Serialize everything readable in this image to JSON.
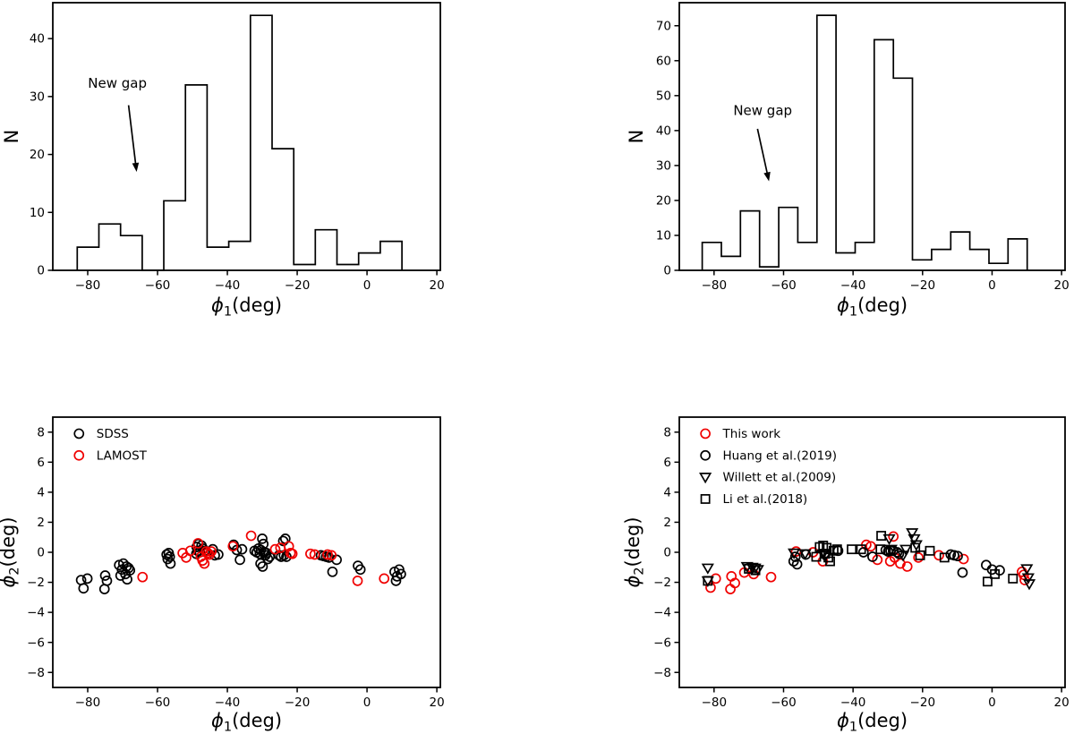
{
  "figure": {
    "background": "#ffffff",
    "text_color": "#000000",
    "accent_red": "#f00000",
    "annotation_label": "New gap"
  },
  "chart_data": [
    {
      "id": "hist1",
      "type": "histogram",
      "panel": "top-left",
      "xlabel": {
        "sym": "ϕ",
        "sub": "1",
        "rest": "(deg)",
        "italic": true
      },
      "ylabel": {
        "sym": "N",
        "sub": "",
        "rest": "",
        "italic": false
      },
      "xlim": [
        -90,
        21
      ],
      "ylim": [
        0,
        46.2
      ],
      "xticks": [
        -80,
        -60,
        -40,
        -20,
        0,
        20
      ],
      "yticks": [
        0,
        10,
        20,
        30,
        40
      ],
      "bin_edges": [
        -83,
        -76.8,
        -70.6,
        -64.4,
        -58.2,
        -52,
        -45.8,
        -39.6,
        -33.4,
        -27.2,
        -21,
        -14.8,
        -8.6,
        -2.4,
        3.8,
        10
      ],
      "counts": [
        4,
        8,
        6,
        0,
        12,
        32,
        4,
        5,
        44,
        21,
        1,
        7,
        1,
        3,
        5
      ],
      "annotation": {
        "text": "New gap",
        "text_xy": [
          -71.5,
          31.5
        ],
        "arrow_from": [
          -68.3,
          28.5
        ],
        "arrow_to": [
          -66,
          17
        ]
      }
    },
    {
      "id": "hist2",
      "type": "histogram",
      "panel": "top-right",
      "xlabel": {
        "sym": "ϕ",
        "sub": "1",
        "rest": "(deg)",
        "italic": true
      },
      "ylabel": {
        "sym": "N",
        "sub": "",
        "rest": "",
        "italic": false
      },
      "xlim": [
        -90,
        21
      ],
      "ylim": [
        0,
        76.6
      ],
      "xticks": [
        -80,
        -60,
        -40,
        -20,
        0,
        20
      ],
      "yticks": [
        0,
        10,
        20,
        30,
        40,
        50,
        60,
        70
      ],
      "bin_edges": [
        -83.4,
        -77.9,
        -72.4,
        -66.9,
        -61.4,
        -55.9,
        -50.4,
        -44.9,
        -39.4,
        -33.9,
        -28.4,
        -22.9,
        -17.4,
        -11.9,
        -6.4,
        -0.9,
        4.6,
        10.1
      ],
      "counts": [
        8,
        4,
        17,
        1,
        18,
        8,
        73,
        5,
        8,
        66,
        55,
        3,
        6,
        11,
        6,
        2,
        9
      ],
      "annotation": {
        "text": "New gap",
        "text_xy": [
          -66,
          44.5
        ],
        "arrow_from": [
          -67.5,
          40.5
        ],
        "arrow_to": [
          -64.2,
          25.5
        ]
      }
    },
    {
      "id": "scatter1",
      "type": "scatter",
      "panel": "bottom-left",
      "xlabel": {
        "sym": "ϕ",
        "sub": "1",
        "rest": "(deg)",
        "italic": true
      },
      "ylabel": {
        "sym": "ϕ",
        "sub": "2",
        "rest": "(deg)",
        "italic": true
      },
      "xlim": [
        -90,
        21
      ],
      "ylim": [
        -9,
        9
      ],
      "xticks": [
        -80,
        -60,
        -40,
        -20,
        0,
        20
      ],
      "yticks": [
        -8,
        -6,
        -4,
        -2,
        0,
        2,
        4,
        6,
        8
      ],
      "legend": {
        "position": "upper-left",
        "marker_x": -82.5,
        "label_x": -77.5,
        "first_row_y": 7.9,
        "row_step": 1.45
      },
      "series": [
        {
          "name": "SDSS",
          "marker": "circle",
          "color": "#000000",
          "points": [
            [
              -81.9,
              -1.85
            ],
            [
              -80.1,
              -1.75
            ],
            [
              -81.2,
              -2.4
            ],
            [
              -75.0,
              -1.55
            ],
            [
              -75.2,
              -2.45
            ],
            [
              -74.5,
              -1.9
            ],
            [
              -71.0,
              -0.85
            ],
            [
              -69.8,
              -0.75
            ],
            [
              -68.9,
              -0.95
            ],
            [
              -68.3,
              -1.05
            ],
            [
              -70.2,
              -1.15
            ],
            [
              -69.2,
              -1.45
            ],
            [
              -70.6,
              -1.55
            ],
            [
              -68.7,
              -1.8
            ],
            [
              -67.9,
              -1.2
            ],
            [
              -57.4,
              -0.15
            ],
            [
              -57.1,
              -0.45
            ],
            [
              -56.8,
              -0.05
            ],
            [
              -56.5,
              -0.3
            ],
            [
              -56.3,
              -0.75
            ],
            [
              -48.8,
              0.35
            ],
            [
              -48.3,
              0.55
            ],
            [
              -48.5,
              0.1
            ],
            [
              -47.9,
              0.0
            ],
            [
              -47.4,
              0.45
            ],
            [
              -47.0,
              0.25
            ],
            [
              -46.4,
              0.1
            ],
            [
              -48.9,
              -0.1
            ],
            [
              -44.2,
              0.2
            ],
            [
              -43.6,
              -0.2
            ],
            [
              -42.6,
              -0.15
            ],
            [
              -38.2,
              0.5
            ],
            [
              -37.3,
              0.15
            ],
            [
              -36.4,
              -0.5
            ],
            [
              -35.8,
              0.2
            ],
            [
              -32.2,
              0.1
            ],
            [
              -31.6,
              0.0
            ],
            [
              -31.1,
              0.25
            ],
            [
              -30.7,
              -0.1
            ],
            [
              -30.4,
              0.15
            ],
            [
              -30.0,
              0.9
            ],
            [
              -29.7,
              0.55
            ],
            [
              -29.4,
              0.0
            ],
            [
              -29.1,
              -0.2
            ],
            [
              -28.8,
              -0.05
            ],
            [
              -30.5,
              -0.75
            ],
            [
              -29.9,
              -0.95
            ],
            [
              -28.4,
              -0.45
            ],
            [
              -27.9,
              -0.3
            ],
            [
              -25.2,
              -0.2
            ],
            [
              -24.6,
              -0.3
            ],
            [
              -24.0,
              0.75
            ],
            [
              -23.4,
              0.9
            ],
            [
              -23.8,
              -0.2
            ],
            [
              -23.1,
              -0.3
            ],
            [
              -13.2,
              -0.2
            ],
            [
              -12.4,
              -0.25
            ],
            [
              -11.7,
              -0.3
            ],
            [
              -10.9,
              -0.35
            ],
            [
              -8.7,
              -0.5
            ],
            [
              -9.9,
              -1.3
            ],
            [
              -2.6,
              -0.9
            ],
            [
              -1.9,
              -1.15
            ],
            [
              7.9,
              -1.3
            ],
            [
              8.6,
              -1.6
            ],
            [
              9.2,
              -1.15
            ],
            [
              9.7,
              -1.45
            ],
            [
              8.3,
              -1.9
            ]
          ]
        },
        {
          "name": "LAMOST",
          "marker": "circle",
          "color": "#f00000",
          "points": [
            [
              -64.3,
              -1.65
            ],
            [
              -52.8,
              -0.05
            ],
            [
              -51.8,
              -0.35
            ],
            [
              -50.6,
              0.1
            ],
            [
              -48.4,
              0.6
            ],
            [
              -47.6,
              -0.3
            ],
            [
              -47.1,
              -0.55
            ],
            [
              -46.6,
              -0.75
            ],
            [
              -46.1,
              0.05
            ],
            [
              -45.6,
              -0.05
            ],
            [
              -45.1,
              -0.15
            ],
            [
              -44.6,
              0.05
            ],
            [
              -38.4,
              0.4
            ],
            [
              -33.2,
              1.1
            ],
            [
              -26.3,
              0.2
            ],
            [
              -24.8,
              0.3
            ],
            [
              -22.4,
              0.4
            ],
            [
              -21.9,
              -0.05
            ],
            [
              -21.4,
              -0.1
            ],
            [
              -16.2,
              -0.1
            ],
            [
              -15.0,
              -0.15
            ],
            [
              -11.3,
              -0.15
            ],
            [
              -10.2,
              -0.2
            ],
            [
              -2.7,
              -1.9
            ],
            [
              4.9,
              -1.75
            ]
          ]
        }
      ]
    },
    {
      "id": "scatter2",
      "type": "scatter",
      "panel": "bottom-right",
      "xlabel": {
        "sym": "ϕ",
        "sub": "1",
        "rest": "(deg)",
        "italic": true
      },
      "ylabel": {
        "sym": "ϕ",
        "sub": "2",
        "rest": "(deg)",
        "italic": true
      },
      "xlim": [
        -90,
        21
      ],
      "ylim": [
        -9,
        9
      ],
      "xticks": [
        -80,
        -60,
        -40,
        -20,
        0,
        20
      ],
      "yticks": [
        -8,
        -6,
        -4,
        -2,
        0,
        2,
        4,
        6,
        8
      ],
      "legend": {
        "position": "upper-left",
        "marker_x": -82.5,
        "label_x": -77.5,
        "first_row_y": 7.9,
        "row_step": 1.45
      },
      "series": [
        {
          "name": "This work",
          "marker": "circle",
          "color": "#f00000",
          "points": [
            [
              -79.5,
              -1.75
            ],
            [
              -81.0,
              -2.35
            ],
            [
              -75.0,
              -1.6
            ],
            [
              -74.0,
              -2.05
            ],
            [
              -75.3,
              -2.45
            ],
            [
              -71.3,
              -1.35
            ],
            [
              -68.6,
              -1.45
            ],
            [
              -63.6,
              -1.65
            ],
            [
              -56.4,
              0.05
            ],
            [
              -51.5,
              0.0
            ],
            [
              -48.7,
              -0.6
            ],
            [
              -36.2,
              0.5
            ],
            [
              -34.9,
              0.4
            ],
            [
              -33.0,
              -0.5
            ],
            [
              -29.3,
              -0.6
            ],
            [
              -28.4,
              1.05
            ],
            [
              -28.0,
              -0.35
            ],
            [
              -26.4,
              -0.75
            ],
            [
              -24.4,
              -0.95
            ],
            [
              -21.2,
              -0.35
            ],
            [
              -15.3,
              -0.2
            ],
            [
              -8.2,
              -0.45
            ],
            [
              8.6,
              -1.3
            ],
            [
              9.1,
              -1.5
            ],
            [
              9.4,
              -1.85
            ]
          ]
        },
        {
          "name": "Huang et al.(2019)",
          "marker": "circle",
          "color": "#000000",
          "points": [
            [
              -56.6,
              -0.3
            ],
            [
              -57.1,
              -0.6
            ],
            [
              -56.1,
              -0.8
            ],
            [
              -53.6,
              -0.15
            ],
            [
              -44.3,
              0.1
            ],
            [
              -37.0,
              0.0
            ],
            [
              -34.4,
              -0.3
            ],
            [
              -30.6,
              0.15
            ],
            [
              -29.9,
              0.05
            ],
            [
              -29.2,
              0.1
            ],
            [
              -28.5,
              0.1
            ],
            [
              -27.3,
              0.0
            ],
            [
              -26.8,
              -0.1
            ],
            [
              -11.9,
              -0.15
            ],
            [
              -10.9,
              -0.2
            ],
            [
              -9.9,
              -0.25
            ],
            [
              -8.5,
              -1.35
            ],
            [
              -1.7,
              -0.85
            ],
            [
              0.0,
              -1.15
            ],
            [
              2.2,
              -1.2
            ]
          ]
        },
        {
          "name": "Willett et al.(2009)",
          "marker": "triangle-down",
          "color": "#000000",
          "points": [
            [
              -81.8,
              -1.05
            ],
            [
              -81.8,
              -1.9
            ],
            [
              -70.5,
              -0.95
            ],
            [
              -69.0,
              -1.0
            ],
            [
              -68.2,
              -1.05
            ],
            [
              -67.4,
              -1.15
            ],
            [
              -57.0,
              -0.05
            ],
            [
              -53.8,
              -0.1
            ],
            [
              -48.6,
              -0.1
            ],
            [
              -47.9,
              -0.2
            ],
            [
              -29.6,
              0.9
            ],
            [
              -29.0,
              0.2
            ],
            [
              -25.6,
              -0.2
            ],
            [
              -24.8,
              0.2
            ],
            [
              -23.0,
              1.3
            ],
            [
              -22.4,
              0.9
            ],
            [
              -21.8,
              0.5
            ],
            [
              10.0,
              -1.1
            ],
            [
              10.4,
              -1.7
            ],
            [
              10.7,
              -2.1
            ]
          ]
        },
        {
          "name": "Li et al.(2018)",
          "marker": "square",
          "color": "#000000",
          "points": [
            [
              -81.8,
              -1.9
            ],
            [
              -70.0,
              -1.1
            ],
            [
              -68.1,
              -1.2
            ],
            [
              -50.6,
              -0.3
            ],
            [
              -49.6,
              0.35
            ],
            [
              -48.6,
              0.45
            ],
            [
              -47.6,
              0.3
            ],
            [
              -48.1,
              -0.1
            ],
            [
              -47.1,
              -0.35
            ],
            [
              -46.6,
              -0.6
            ],
            [
              -45.6,
              0.1
            ],
            [
              -44.6,
              0.2
            ],
            [
              -40.4,
              0.2
            ],
            [
              -37.7,
              0.2
            ],
            [
              -32.1,
              0.2
            ],
            [
              -31.9,
              1.1
            ],
            [
              -22.1,
              0.3
            ],
            [
              -20.7,
              -0.2
            ],
            [
              -17.9,
              0.1
            ],
            [
              -13.7,
              -0.35
            ],
            [
              -1.3,
              -1.95
            ],
            [
              0.8,
              -1.45
            ],
            [
              6.0,
              -1.75
            ]
          ]
        }
      ]
    }
  ]
}
